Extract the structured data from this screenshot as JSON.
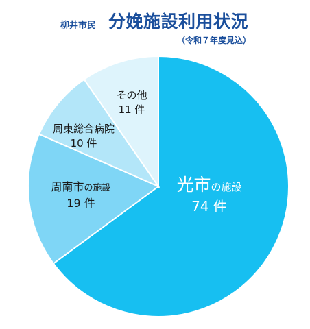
{
  "header": {
    "prefix": "柳井市民",
    "title": "分娩施設利用状況",
    "subtitle": "（令和７年度見込）"
  },
  "chart_data": {
    "type": "pie",
    "title": "分娩施設利用状況",
    "subtitle": "（令和７年度見込）",
    "unit": "件",
    "slices": [
      {
        "name_main": "光市",
        "name_suffix": "の施設",
        "value": 74,
        "value_label": "74 件",
        "color": "#17bff1",
        "text_color": "#ffffff"
      },
      {
        "name_main": "周南市",
        "name_suffix": "の施設",
        "value": 19,
        "value_label": "19 件",
        "color": "#7fd6f6",
        "text_color": "#1a1a1a"
      },
      {
        "name_main": "周東総合病院",
        "name_suffix": "",
        "value": 10,
        "value_label": "10 件",
        "color": "#b3e6f9",
        "text_color": "#1a1a1a"
      },
      {
        "name_main": "その他",
        "name_suffix": "",
        "value": 11,
        "value_label": "11 件",
        "color": "#def4fc",
        "text_color": "#1a1a1a"
      }
    ]
  }
}
